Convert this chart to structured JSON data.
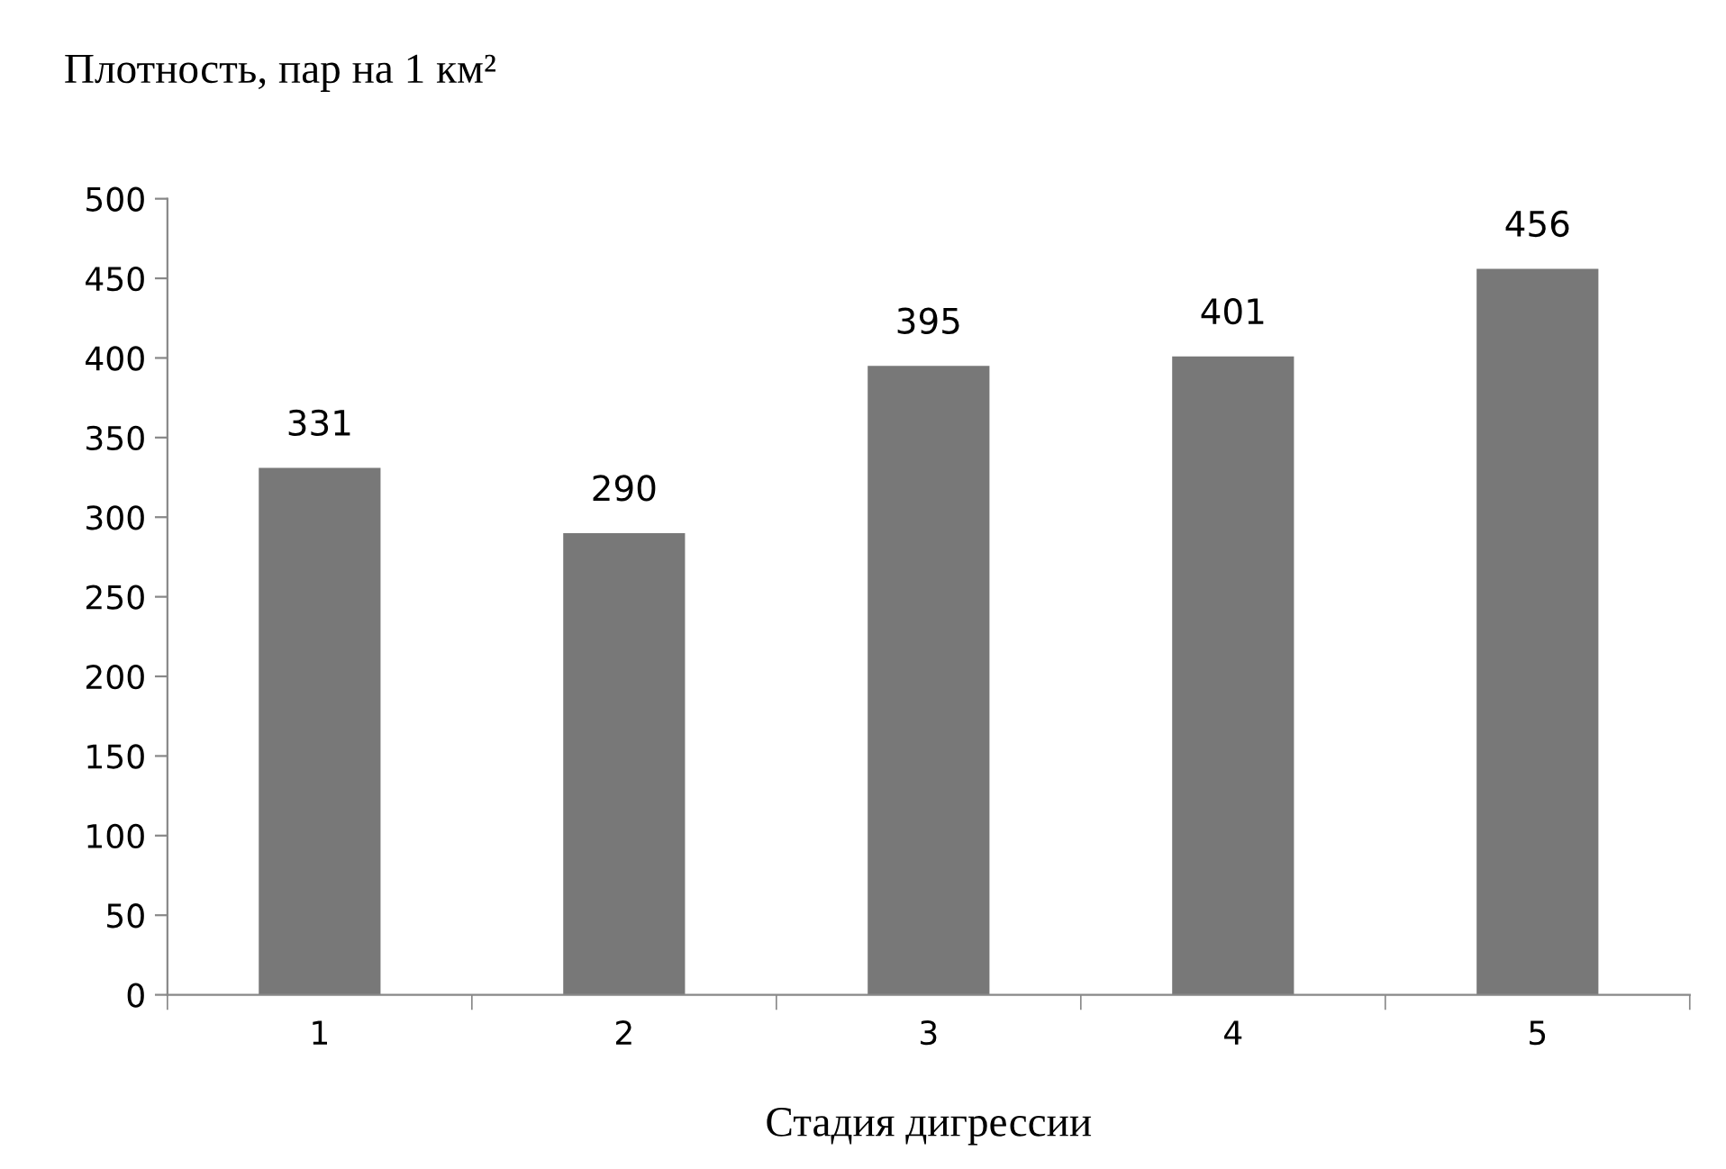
{
  "chart_data": {
    "type": "bar",
    "title": "Плотность, пар на 1 км²",
    "xlabel": "Стадия дигрессии",
    "categories": [
      "1",
      "2",
      "3",
      "4",
      "5"
    ],
    "values": [
      331,
      290,
      395,
      401,
      456
    ],
    "color": "#787878",
    "ylim": [
      0,
      500
    ],
    "yticks": [
      0,
      50,
      100,
      150,
      200,
      250,
      300,
      350,
      400,
      450,
      500
    ],
    "data_labels": true,
    "grid": false,
    "legend": false
  }
}
